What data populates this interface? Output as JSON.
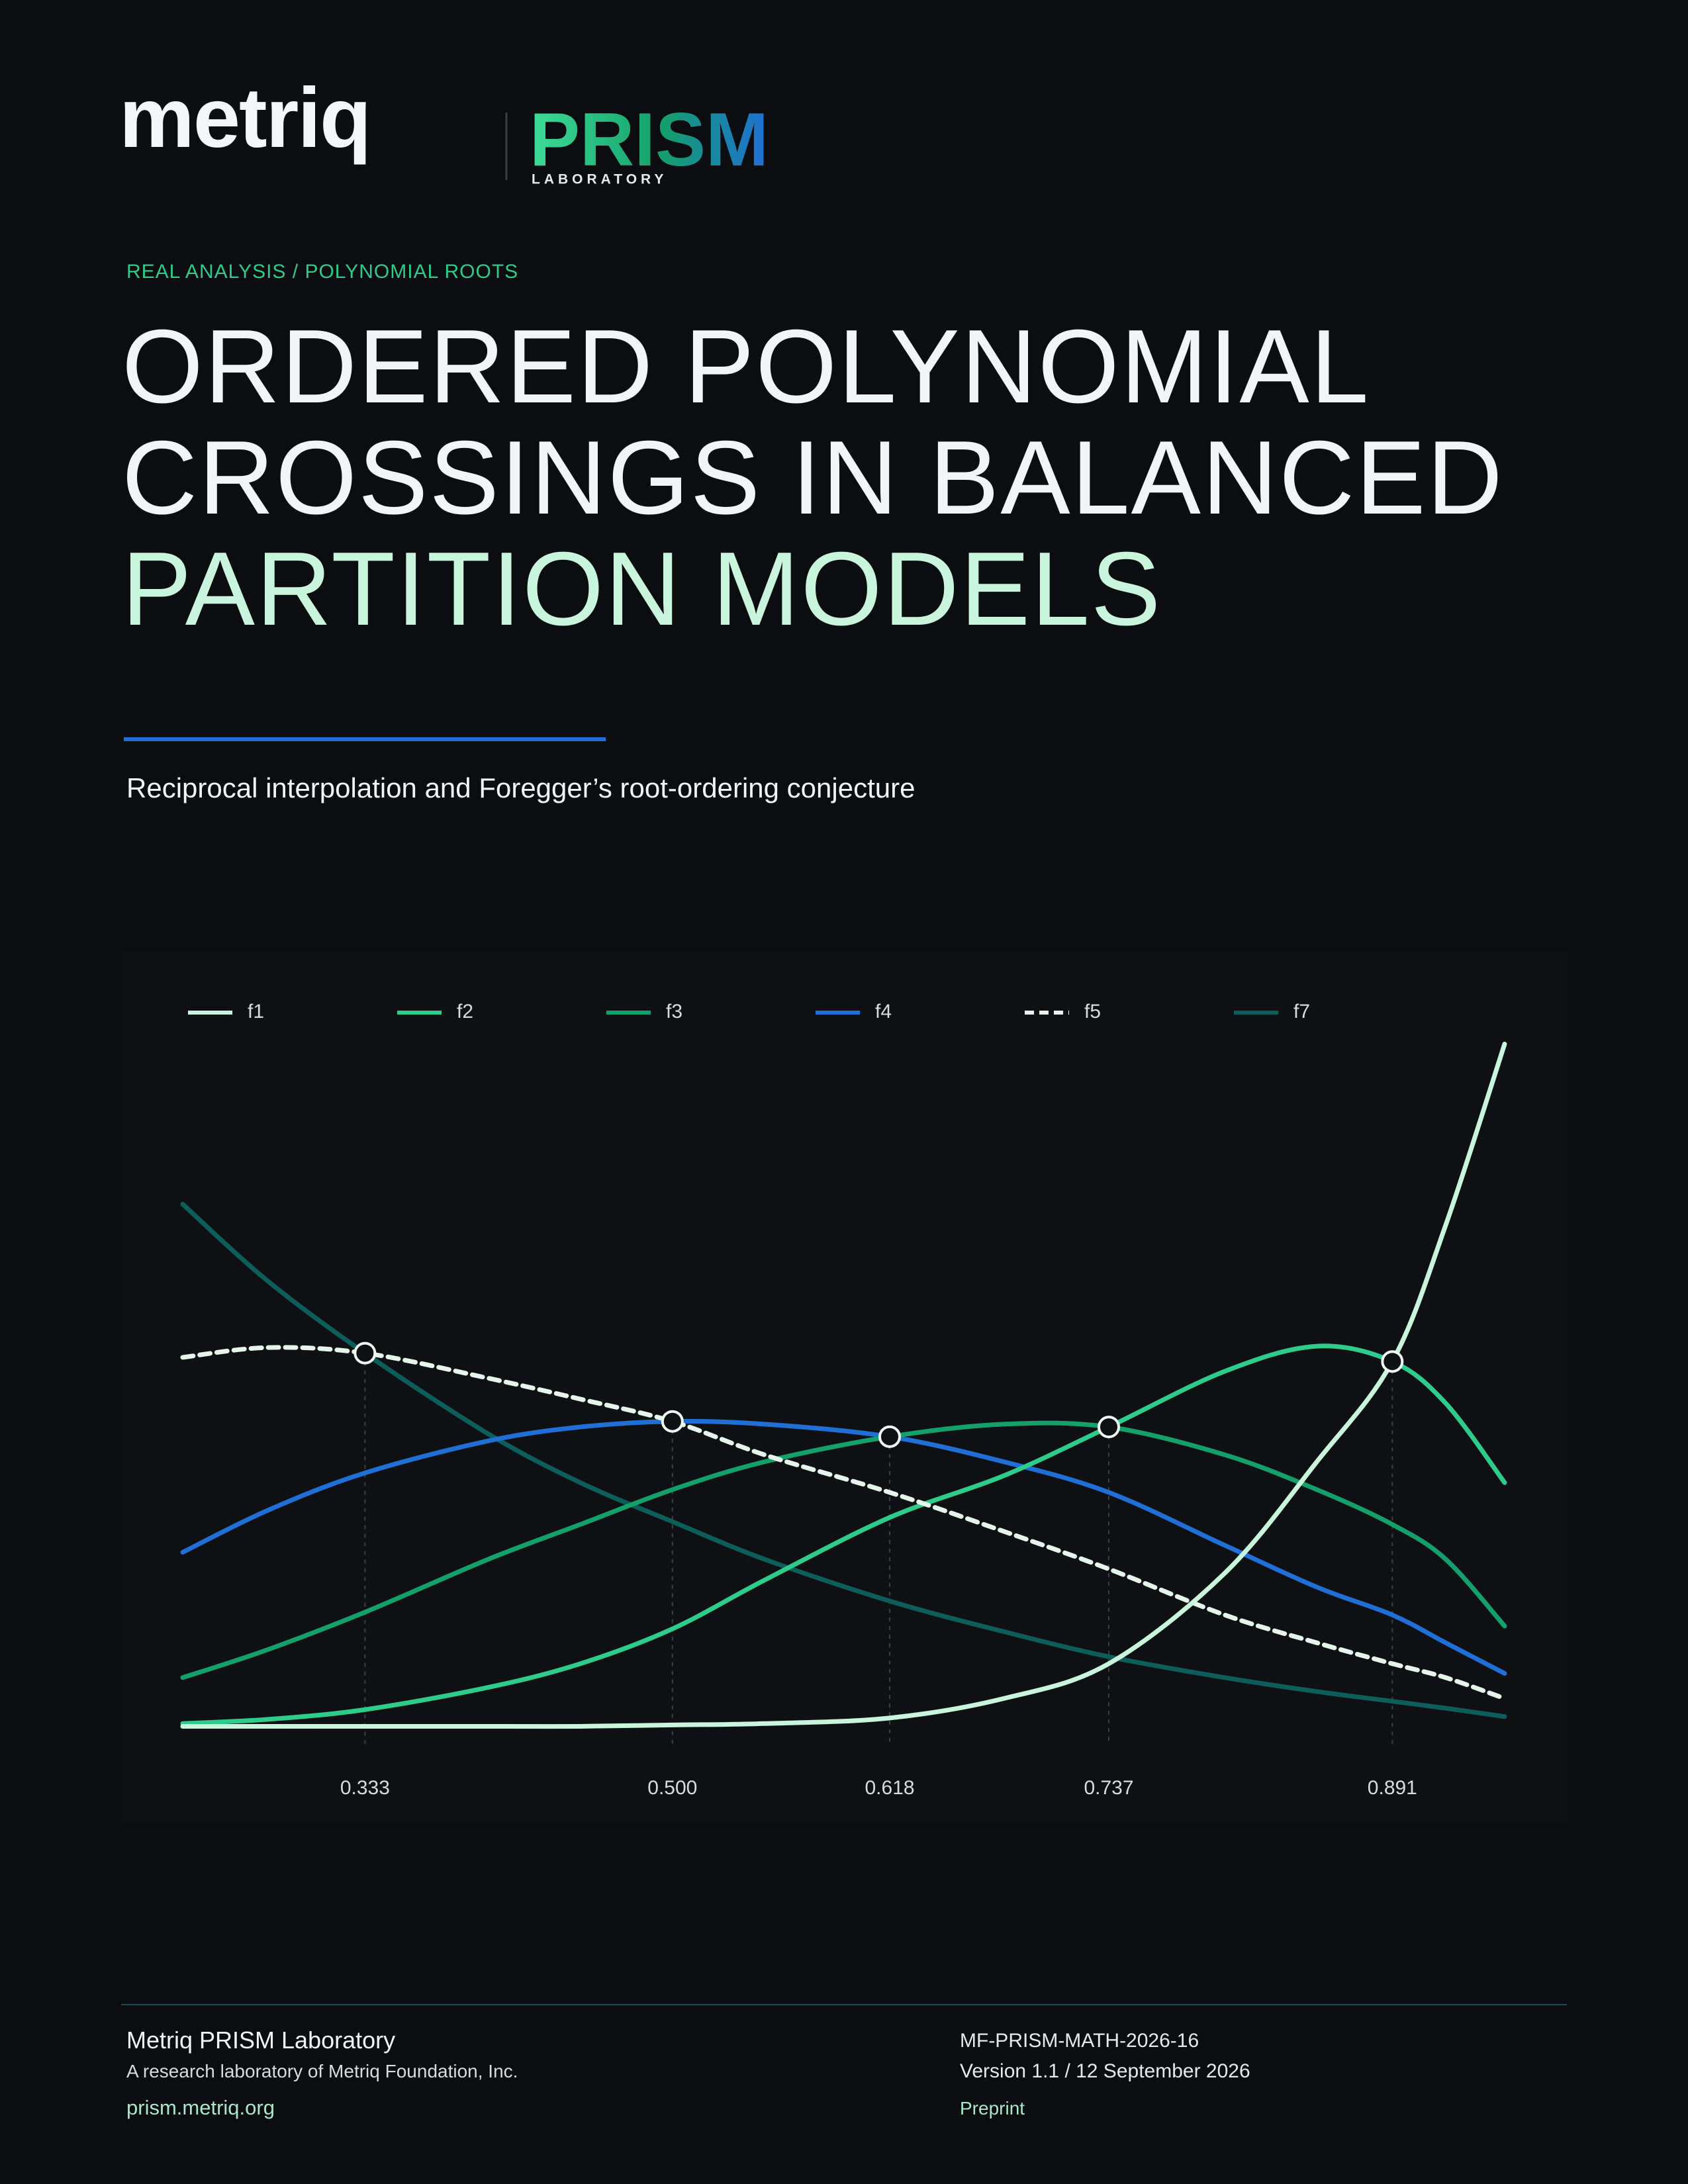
{
  "header": {
    "brand": "metriq",
    "lab_name": "PRISM",
    "lab_sub": "LABORATORY"
  },
  "document": {
    "kicker": "REAL ANALYSIS / POLYNOMIAL ROOTS",
    "title_lines": [
      "ORDERED POLYNOMIAL",
      "CROSSINGS IN BALANCED",
      "PARTITION MODELS"
    ],
    "subtitle": "Reciprocal interpolation and Foregger’s root-ordering conjecture"
  },
  "chart_data": {
    "type": "line",
    "x": [
      0.234,
      0.28,
      0.333,
      0.4,
      0.45,
      0.5,
      0.55,
      0.618,
      0.68,
      0.737,
      0.8,
      0.85,
      0.891,
      0.92,
      0.952
    ],
    "xlim": [
      0.234,
      0.952
    ],
    "xticks": [
      0.333,
      {
        "value": 0.5,
        "label": "0.500"
      },
      0.618,
      0.737,
      0.891
    ],
    "ylim": [
      0,
      1
    ],
    "legend": "top",
    "crossing_values": [
      0.546,
      0.448,
      0.426,
      0.44,
      0.534
    ],
    "series": [
      {
        "name": "f1",
        "color": "#c8f5dc",
        "dashed": false,
        "values": [
          0.01,
          0.01,
          0.01,
          0.01,
          0.01,
          0.012,
          0.014,
          0.022,
          0.05,
          0.1,
          0.23,
          0.39,
          0.534,
          0.73,
          0.99
        ]
      },
      {
        "name": "f2",
        "color": "#2ecc8a",
        "dashed": false,
        "values": [
          0.014,
          0.02,
          0.034,
          0.066,
          0.1,
          0.15,
          0.22,
          0.31,
          0.37,
          0.44,
          0.52,
          0.556,
          0.534,
          0.474,
          0.36
        ]
      },
      {
        "name": "f3",
        "color": "#14a06a",
        "dashed": false,
        "values": [
          0.08,
          0.12,
          0.174,
          0.25,
          0.3,
          0.35,
          0.39,
          0.426,
          0.444,
          0.44,
          0.4,
          0.35,
          0.3,
          0.25,
          0.154
        ]
      },
      {
        "name": "f4",
        "color": "#1f6fd6",
        "dashed": false,
        "values": [
          0.26,
          0.32,
          0.374,
          0.42,
          0.44,
          0.448,
          0.444,
          0.426,
          0.39,
          0.346,
          0.27,
          0.21,
          0.17,
          0.13,
          0.086
        ]
      },
      {
        "name": "f5",
        "color": "#e6f5ec",
        "dashed": true,
        "values": [
          0.54,
          0.554,
          0.546,
          0.51,
          0.48,
          0.448,
          0.4,
          0.346,
          0.29,
          0.236,
          0.17,
          0.13,
          0.1,
          0.08,
          0.05
        ]
      },
      {
        "name": "f7",
        "color": "#0d5e5a",
        "dashed": false,
        "values": [
          0.76,
          0.65,
          0.546,
          0.43,
          0.36,
          0.304,
          0.25,
          0.19,
          0.146,
          0.11,
          0.08,
          0.06,
          0.046,
          0.036,
          0.024
        ]
      }
    ]
  },
  "footer": {
    "org": "Metriq PRISM Laboratory",
    "org_sub": "A research laboratory of Metriq Foundation, Inc.",
    "url": "prism.metriq.org",
    "doc_id": "MF-PRISM-MATH-2026-16",
    "version": "Version 1.1 / 12 September 2026",
    "status": "Preprint"
  }
}
